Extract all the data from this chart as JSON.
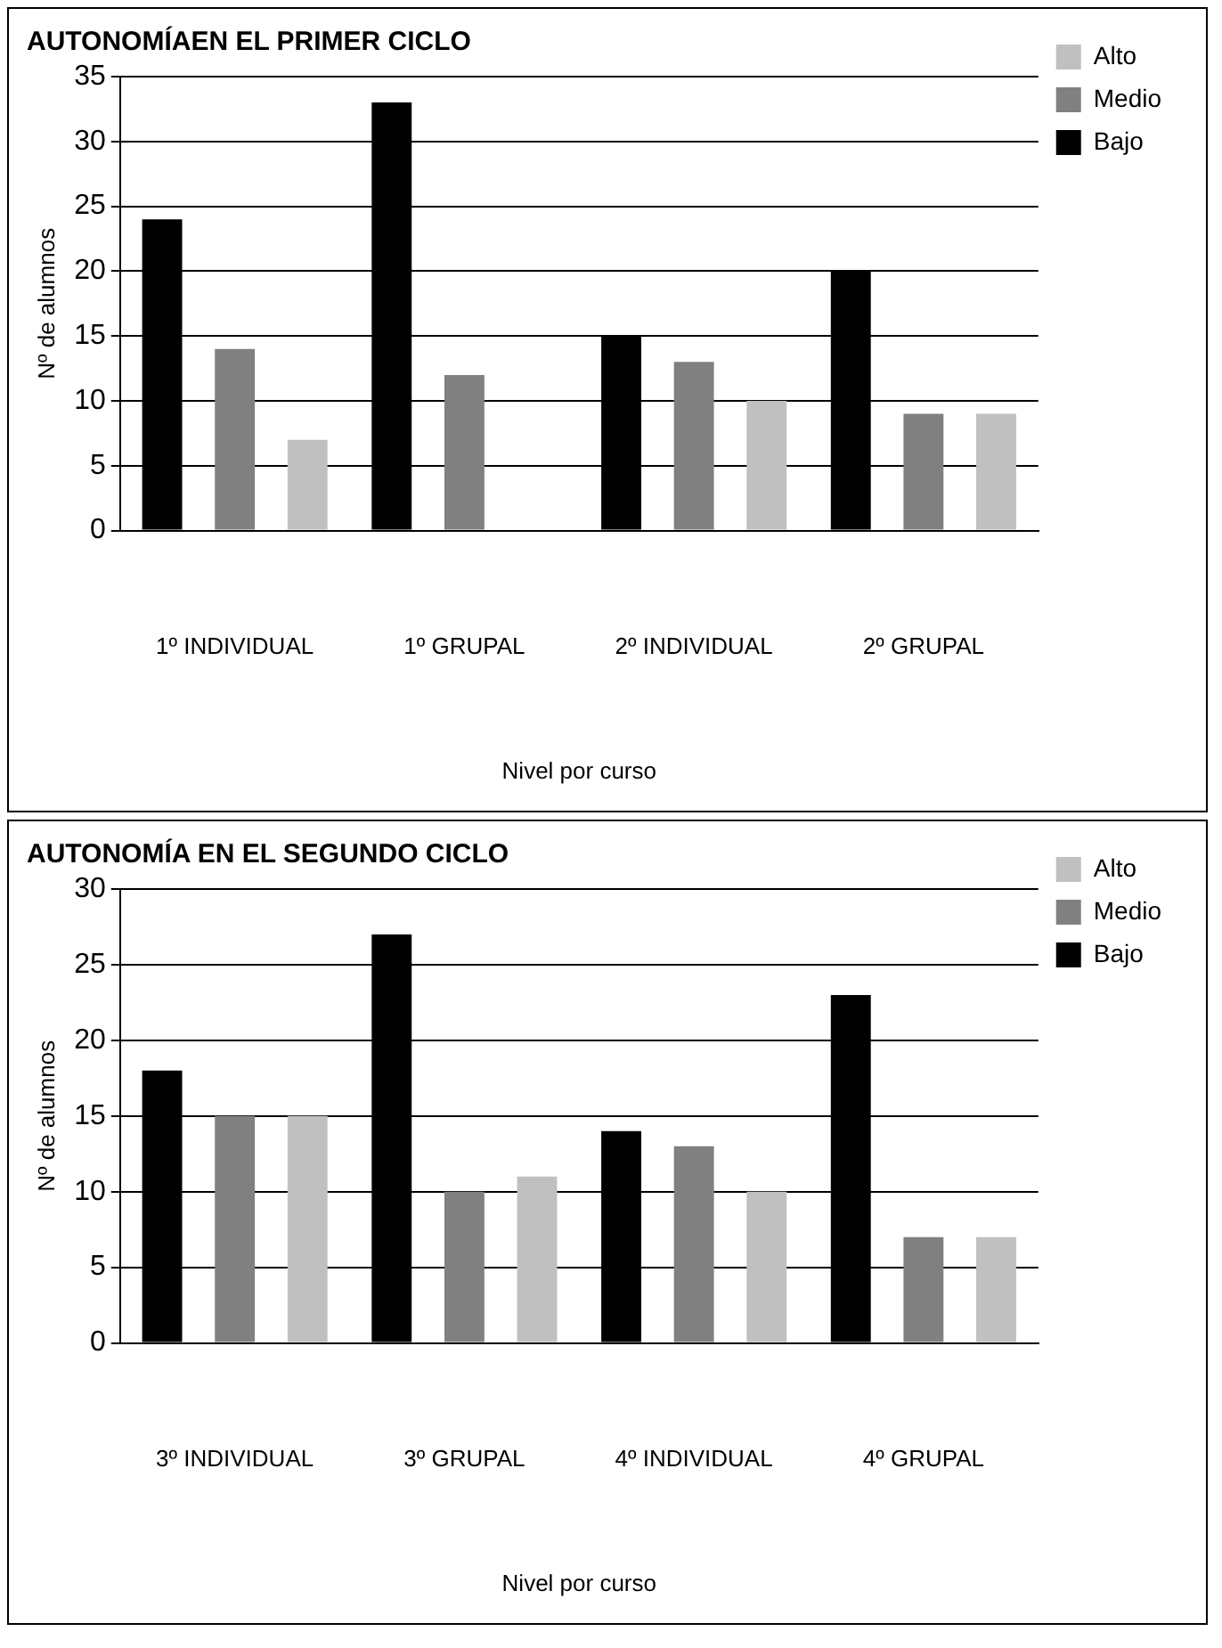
{
  "chart_data": [
    {
      "type": "bar",
      "title": "AUTONOMÍAEN EL PRIMER CICLO",
      "xlabel": "Nivel por curso",
      "ylabel": "Nº de alumnos",
      "categories": [
        "1º INDIVIDUAL",
        "1º GRUPAL",
        "2º INDIVIDUAL",
        "2º GRUPAL"
      ],
      "series": [
        {
          "name": "Bajo",
          "color": "#000000",
          "values": [
            24,
            33,
            15,
            20
          ]
        },
        {
          "name": "Medio",
          "color": "#808080",
          "values": [
            14,
            12,
            13,
            9
          ]
        },
        {
          "name": "Alto",
          "color": "#c0c0c0",
          "values": [
            7,
            0,
            10,
            9
          ]
        }
      ],
      "ylim": [
        0,
        35
      ],
      "yticks": [
        0,
        5,
        10,
        15,
        20,
        25,
        30,
        35
      ],
      "grid": "y",
      "legend": "top right"
    },
    {
      "type": "bar",
      "title": "AUTONOMÍA EN EL SEGUNDO CICLO",
      "xlabel": "Nivel por curso",
      "ylabel": "Nº de alumnos",
      "categories": [
        "3º INDIVIDUAL",
        "3º GRUPAL",
        "4º INDIVIDUAL",
        "4º GRUPAL"
      ],
      "series": [
        {
          "name": "Bajo",
          "color": "#000000",
          "values": [
            18,
            27,
            14,
            23
          ]
        },
        {
          "name": "Medio",
          "color": "#808080",
          "values": [
            15,
            10,
            13,
            7
          ]
        },
        {
          "name": "Alto",
          "color": "#c0c0c0",
          "values": [
            15,
            11,
            10,
            7
          ]
        }
      ],
      "ylim": [
        0,
        30
      ],
      "yticks": [
        0,
        5,
        10,
        15,
        20,
        25,
        30
      ],
      "grid": "y",
      "legend": "top right"
    }
  ]
}
